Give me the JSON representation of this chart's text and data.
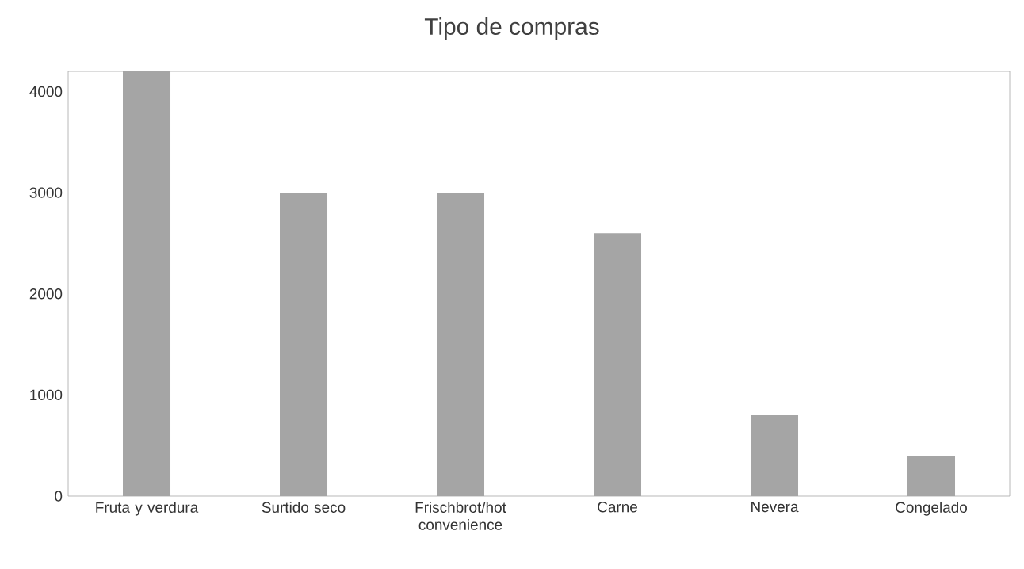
{
  "chart_data": {
    "type": "bar",
    "title": "Tipo de compras",
    "categories": [
      "Fruta y verdura",
      "Surtido seco",
      "Frischbrot/hot convenience",
      "Carne",
      "Nevera",
      "Congelado"
    ],
    "values": [
      4200,
      3000,
      3000,
      2600,
      800,
      400
    ],
    "color": "#a5a5a5",
    "ylim": [
      0,
      4200
    ],
    "yticks": [
      0,
      1000,
      2000,
      3000,
      4000
    ],
    "grid": false
  }
}
